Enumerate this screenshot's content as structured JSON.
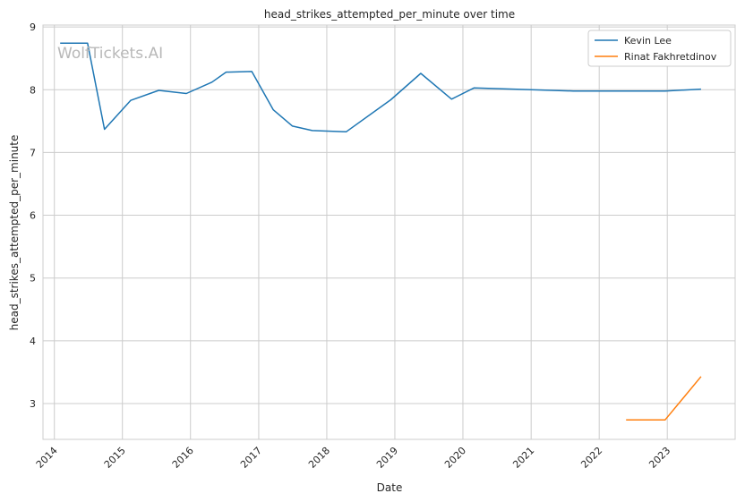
{
  "watermark": "WolfTickets.AI",
  "chart_data": {
    "type": "line",
    "title": "head_strikes_attempted_per_minute over time",
    "xlabel": "Date",
    "ylabel": "head_strikes_attempted_per_minute",
    "x_tick_labels": [
      "2014",
      "2015",
      "2016",
      "2017",
      "2018",
      "2019",
      "2020",
      "2021",
      "2022",
      "2023"
    ],
    "y_tick_labels": [
      "3",
      "4",
      "5",
      "6",
      "7",
      "8",
      "9"
    ],
    "xlim": [
      "2013-11-01",
      "2023-12-31"
    ],
    "ylim": [
      2.43,
      9.03
    ],
    "grid": true,
    "legend_position": "top-right",
    "series": [
      {
        "name": "Kevin Lee",
        "color": "#1f77b4",
        "points": [
          [
            "2014-02-01",
            8.74
          ],
          [
            "2014-06-28",
            8.74
          ],
          [
            "2014-09-27",
            7.37
          ],
          [
            "2015-02-14",
            7.83
          ],
          [
            "2015-07-15",
            7.99
          ],
          [
            "2015-12-10",
            7.94
          ],
          [
            "2016-04-25",
            8.12
          ],
          [
            "2016-07-10",
            8.28
          ],
          [
            "2016-11-25",
            8.29
          ],
          [
            "2017-03-20",
            7.68
          ],
          [
            "2017-07-01",
            7.42
          ],
          [
            "2017-10-15",
            7.35
          ],
          [
            "2018-04-15",
            7.33
          ],
          [
            "2018-12-10",
            7.84
          ],
          [
            "2019-05-20",
            8.26
          ],
          [
            "2019-11-01",
            7.85
          ],
          [
            "2020-03-01",
            8.03
          ],
          [
            "2021-01-01",
            8.0
          ],
          [
            "2021-08-15",
            7.98
          ],
          [
            "2022-12-20",
            7.98
          ],
          [
            "2023-07-01",
            8.01
          ]
        ]
      },
      {
        "name": "Rinat Fakhretdinov",
        "color": "#ff7f0e",
        "points": [
          [
            "2022-05-25",
            2.74
          ],
          [
            "2022-12-20",
            2.74
          ],
          [
            "2023-07-01",
            3.43
          ]
        ]
      }
    ]
  }
}
